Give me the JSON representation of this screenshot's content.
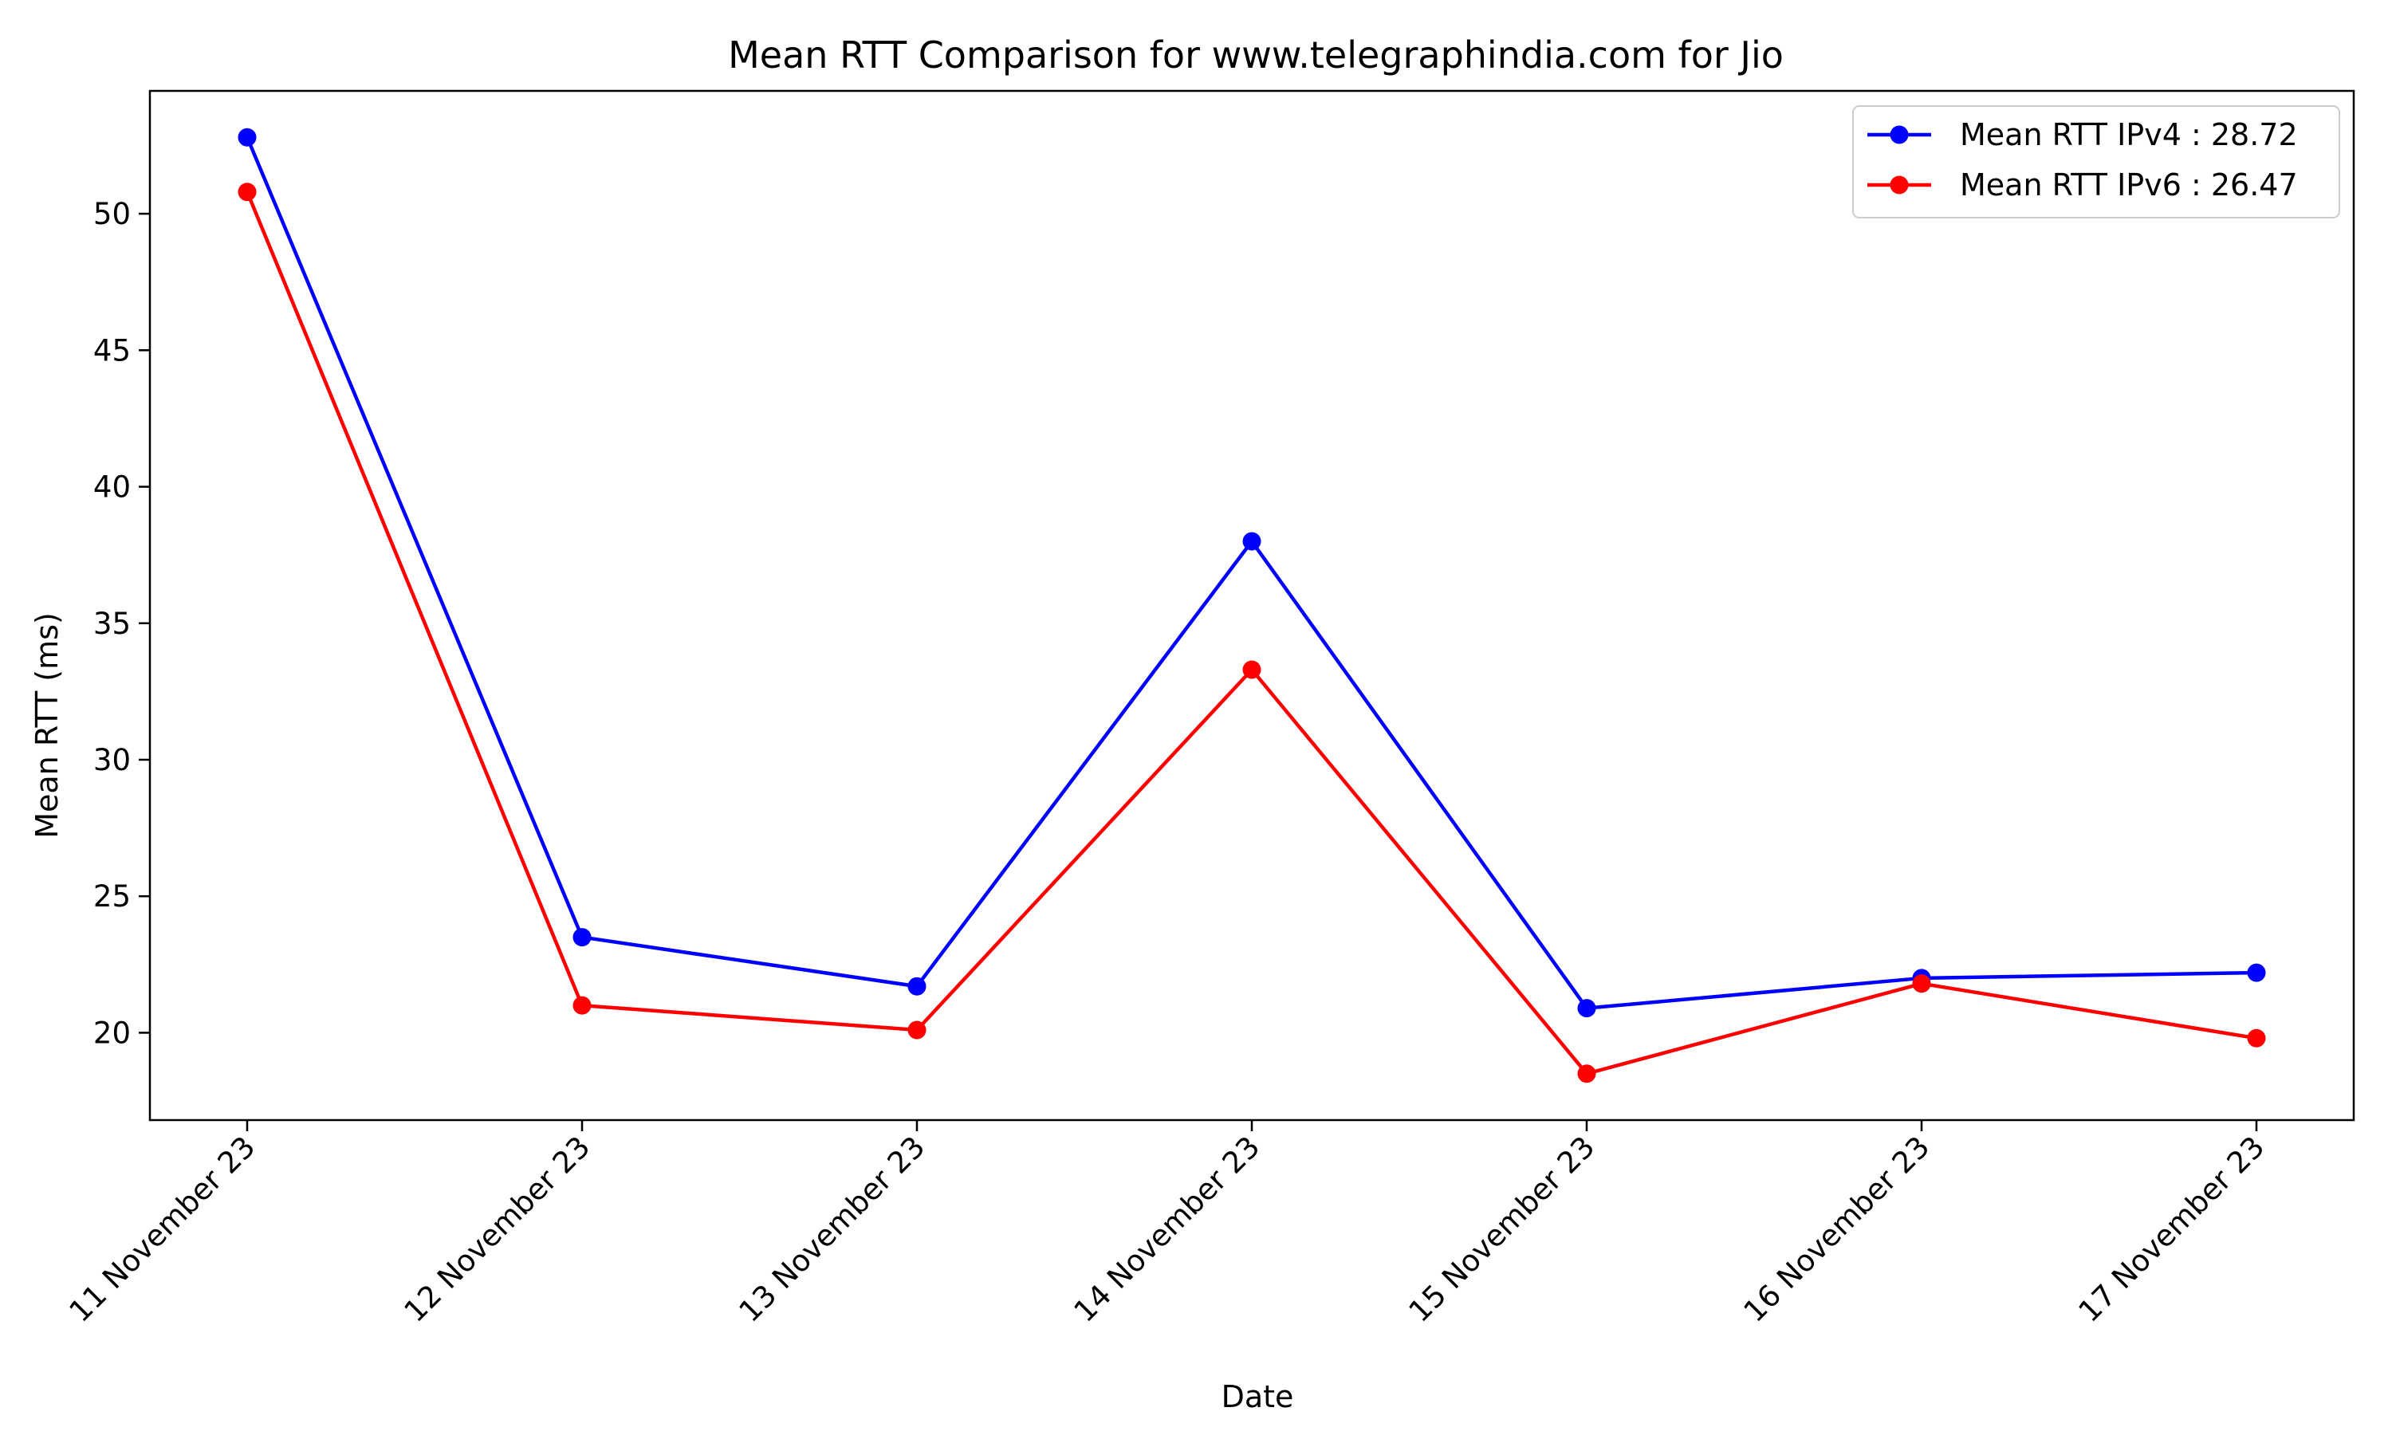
{
  "chart_data": {
    "type": "line",
    "title": "Mean RTT Comparison for www.telegraphindia.com for Jio",
    "xlabel": "Date",
    "ylabel": "Mean RTT (ms)",
    "categories": [
      "11 November 23",
      "12 November 23",
      "13 November 23",
      "14 November 23",
      "15 November 23",
      "16 November 23",
      "17 November 23"
    ],
    "ylim": [
      16.8,
      54.5
    ],
    "yticks": [
      20,
      25,
      30,
      35,
      40,
      45,
      50
    ],
    "grid": false,
    "legend_position": "top-right",
    "series": [
      {
        "name": "Mean RTT IPv4 : 28.72",
        "color": "#0000ff",
        "values": [
          52.8,
          23.5,
          21.7,
          38.0,
          20.9,
          22.0,
          22.2
        ]
      },
      {
        "name": "Mean RTT IPv6 : 26.47",
        "color": "#ff0000",
        "values": [
          50.8,
          21.0,
          20.1,
          33.3,
          18.5,
          21.8,
          19.8
        ]
      }
    ]
  }
}
